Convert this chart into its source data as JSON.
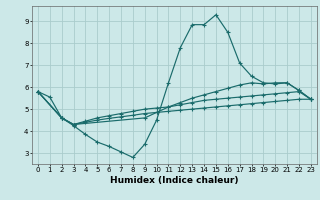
{
  "xlabel": "Humidex (Indice chaleur)",
  "xlim": [
    -0.5,
    23.5
  ],
  "ylim": [
    2.5,
    9.7
  ],
  "yticks": [
    3,
    4,
    5,
    6,
    7,
    8,
    9
  ],
  "xticks": [
    0,
    1,
    2,
    3,
    4,
    5,
    6,
    7,
    8,
    9,
    10,
    11,
    12,
    13,
    14,
    15,
    16,
    17,
    18,
    19,
    20,
    21,
    22,
    23
  ],
  "background_color": "#cce8e8",
  "grid_color": "#aacccc",
  "line_color": "#1a6b6b",
  "lines": [
    {
      "x": [
        0,
        1,
        2,
        3,
        4,
        5,
        6,
        7,
        8,
        9,
        10,
        11,
        12,
        13,
        14,
        15,
        16,
        17,
        18,
        19,
        20,
        21,
        22,
        23
      ],
      "y": [
        5.8,
        5.55,
        4.6,
        4.25,
        3.85,
        3.5,
        3.3,
        3.05,
        2.8,
        3.4,
        4.5,
        6.2,
        7.8,
        8.85,
        8.85,
        9.3,
        8.5,
        7.1,
        6.5,
        6.2,
        6.15,
        6.2,
        5.85,
        5.45
      ]
    },
    {
      "x": [
        0,
        2,
        3,
        9,
        10,
        11,
        12,
        13,
        14,
        15,
        16,
        17,
        18,
        19,
        20,
        21,
        22,
        23
      ],
      "y": [
        5.8,
        4.6,
        4.3,
        4.6,
        4.85,
        5.1,
        5.3,
        5.5,
        5.65,
        5.8,
        5.95,
        6.1,
        6.2,
        6.15,
        6.2,
        6.2,
        5.85,
        5.45
      ]
    },
    {
      "x": [
        0,
        2,
        3,
        4,
        5,
        6,
        7,
        8,
        9,
        10,
        11,
        12,
        13,
        14,
        15,
        16,
        17,
        18,
        19,
        20,
        21,
        22,
        23
      ],
      "y": [
        5.8,
        4.6,
        4.3,
        4.45,
        4.6,
        4.7,
        4.8,
        4.9,
        5.0,
        5.05,
        5.1,
        5.2,
        5.3,
        5.4,
        5.45,
        5.5,
        5.55,
        5.6,
        5.65,
        5.7,
        5.75,
        5.8,
        5.45
      ]
    },
    {
      "x": [
        0,
        2,
        3,
        4,
        5,
        6,
        7,
        8,
        9,
        10,
        11,
        12,
        13,
        14,
        15,
        16,
        17,
        18,
        19,
        20,
        21,
        22,
        23
      ],
      "y": [
        5.8,
        4.6,
        4.3,
        4.4,
        4.5,
        4.58,
        4.65,
        4.72,
        4.8,
        4.85,
        4.9,
        4.95,
        5.0,
        5.05,
        5.1,
        5.15,
        5.2,
        5.25,
        5.3,
        5.35,
        5.4,
        5.45,
        5.45
      ]
    }
  ]
}
